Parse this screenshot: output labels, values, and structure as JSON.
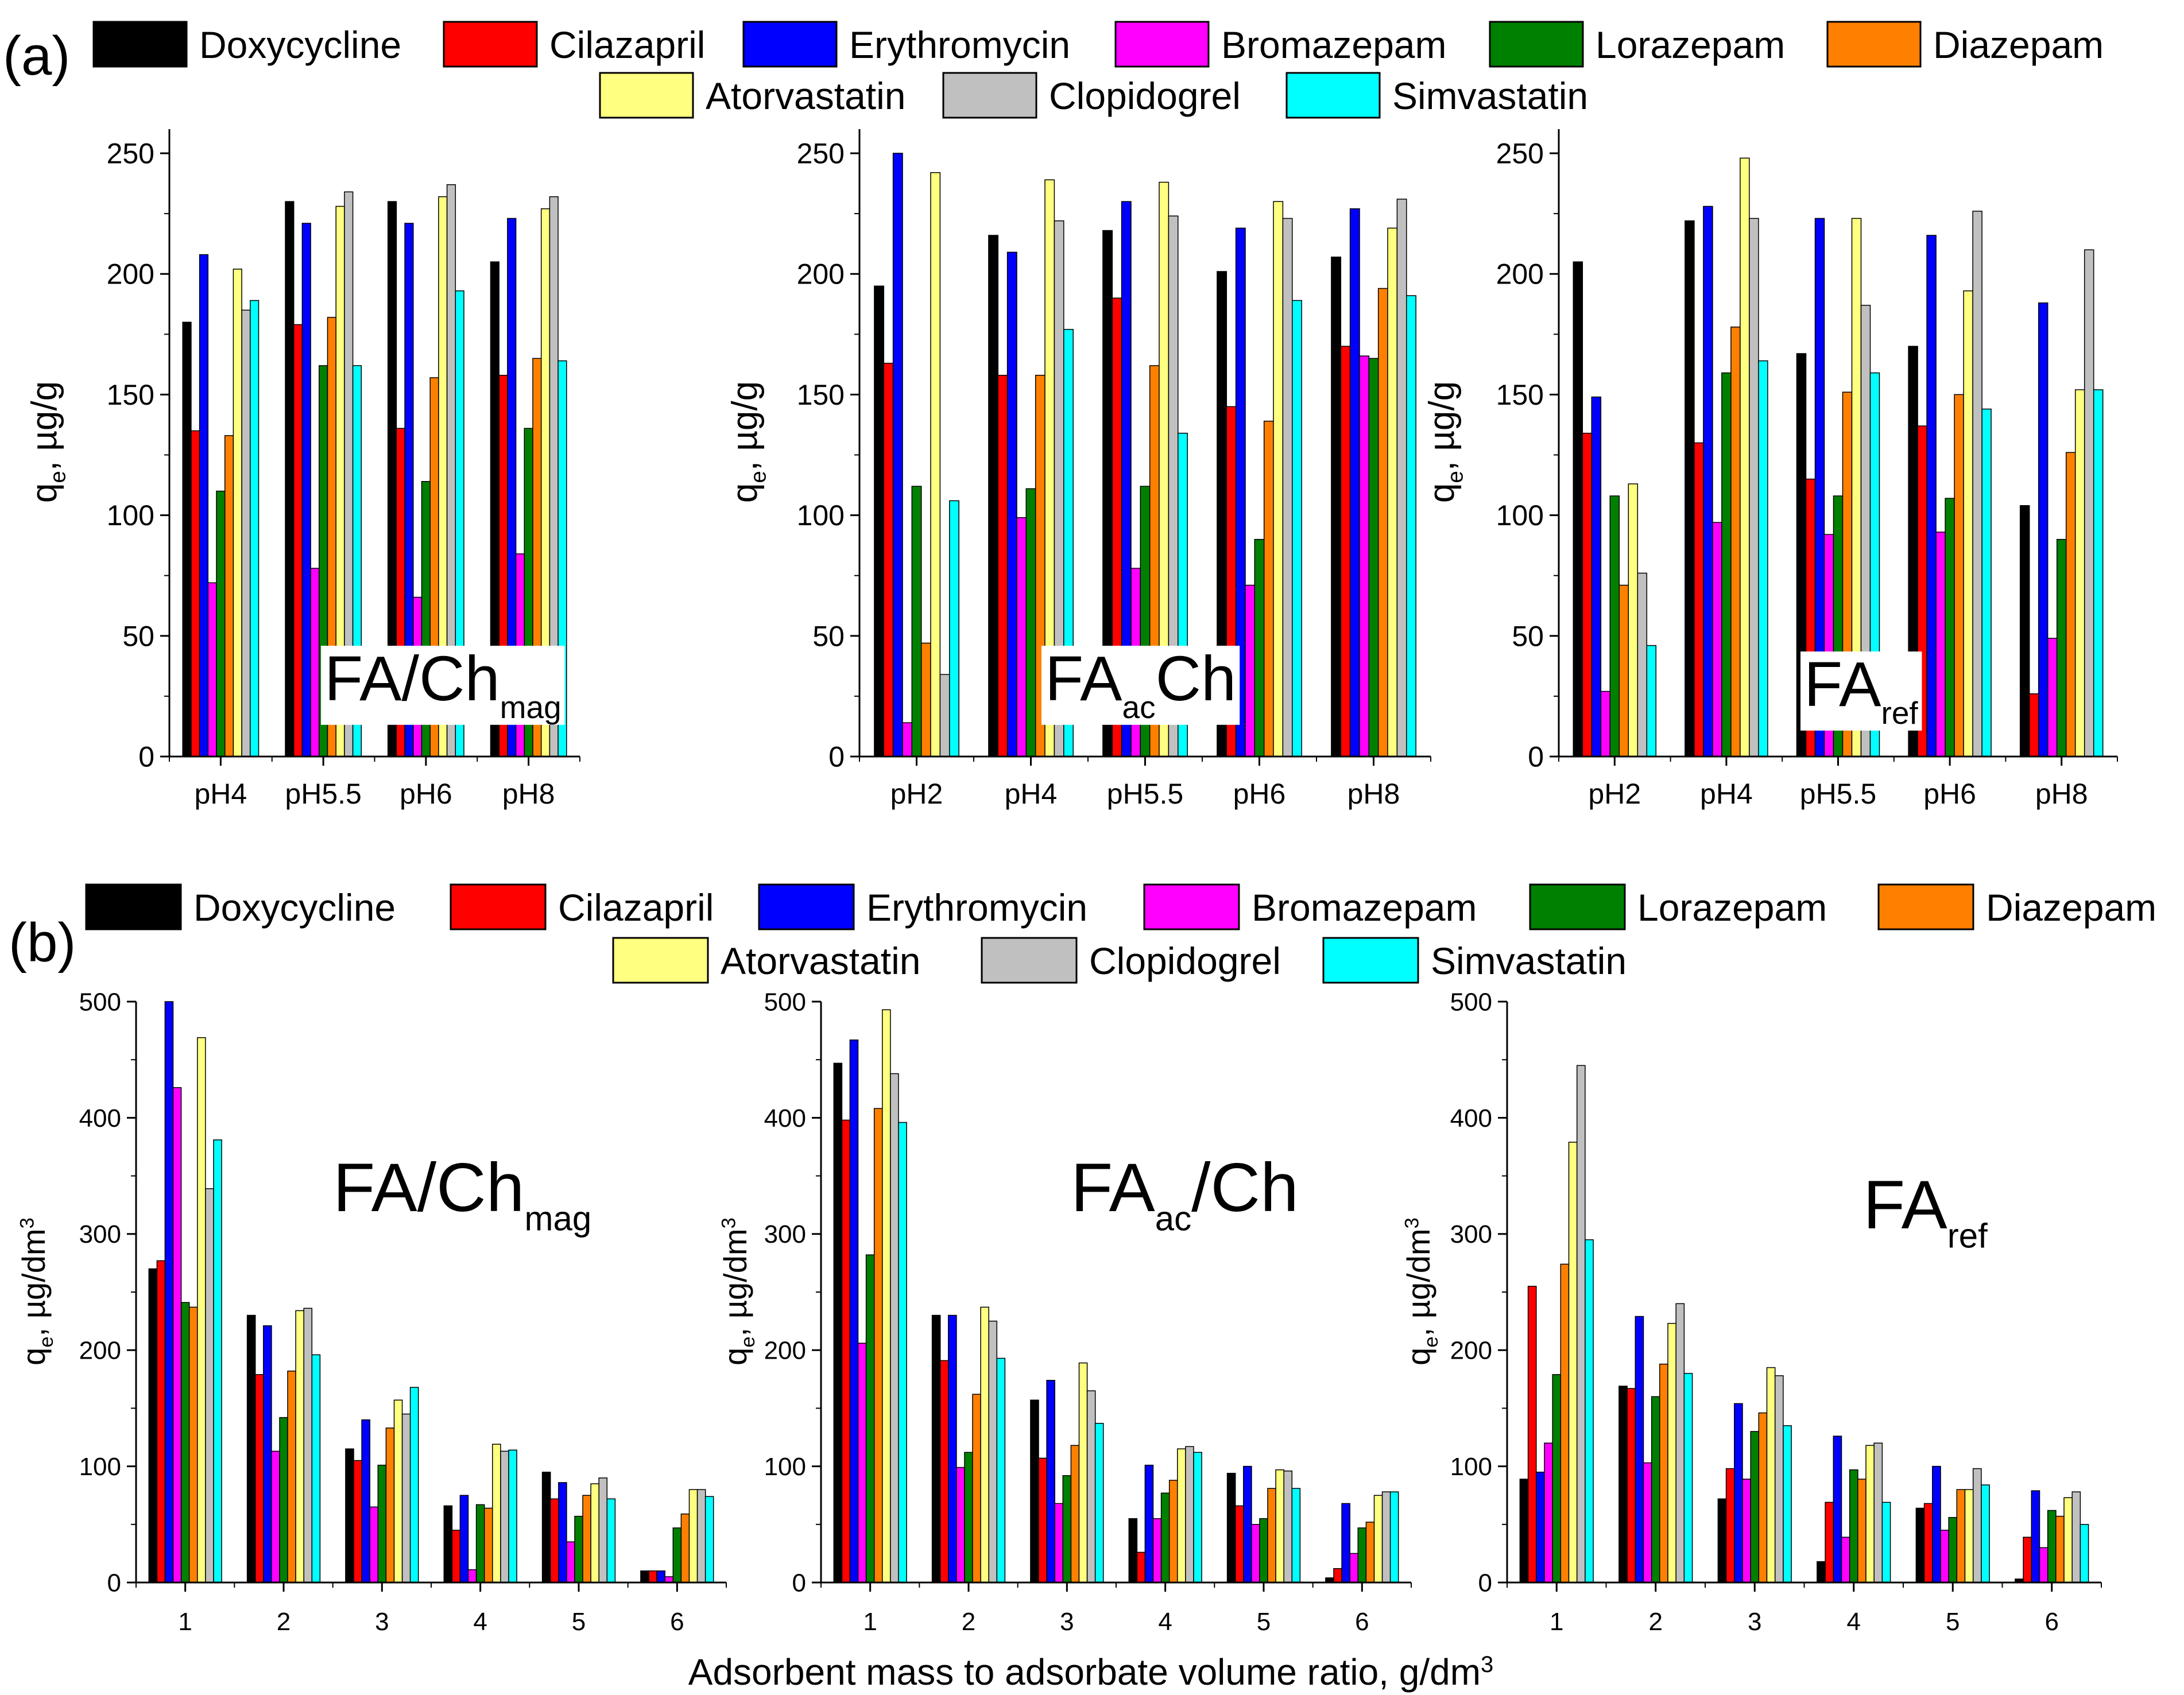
{
  "colors": {
    "Doxycycline": "#000000",
    "Cilazapril": "#ff0000",
    "Erythromycin": "#0000ff",
    "Bromazepam": "#ff00ff",
    "Lorazepam": "#008000",
    "Diazepam": "#ff8000",
    "Atorvastatin": "#ffff80",
    "Clopidogrel": "#c0c0c0",
    "Simvastatin": "#00ffff"
  },
  "legend": {
    "row1": [
      "Doxycycline",
      "Cilazapril",
      "Erythromycin",
      "Bromazepam",
      "Lorazepam",
      "Diazepam"
    ],
    "row2": [
      "Atorvastatin",
      "Clopidogrel",
      "Simvastatin"
    ]
  },
  "labels": {
    "panel_a": "(a)",
    "panel_b": "(b)",
    "ylabel_a": "q",
    "ylabel_a_sub": "e",
    "ylabel_a_rest": ", µg/g",
    "ylabel_b": "q",
    "ylabel_b_sub": "e",
    "ylabel_b_rest": ", µg/dm",
    "ylabel_b_sup": "3",
    "xlabel_b": "Adsorbent mass to adsorbate volume ratio, g/dm",
    "xlabel_b_sup": "3"
  },
  "chart_data": [
    {
      "type": "bar",
      "panel": "a",
      "name_main": "FA/Ch",
      "name_sub": "mag",
      "categories": [
        "pH4",
        "pH5.5",
        "pH6",
        "pH8"
      ],
      "ylim": [
        0,
        260
      ],
      "yticks": [
        0,
        50,
        100,
        150,
        200,
        250
      ],
      "series": [
        {
          "name": "Doxycycline",
          "values": [
            180,
            230,
            230,
            205
          ]
        },
        {
          "name": "Cilazapril",
          "values": [
            135,
            179,
            136,
            158
          ]
        },
        {
          "name": "Erythromycin",
          "values": [
            208,
            221,
            221,
            223
          ]
        },
        {
          "name": "Bromazepam",
          "values": [
            72,
            78,
            66,
            84
          ]
        },
        {
          "name": "Lorazepam",
          "values": [
            110,
            162,
            114,
            136
          ]
        },
        {
          "name": "Diazepam",
          "values": [
            133,
            182,
            157,
            165
          ]
        },
        {
          "name": "Atorvastatin",
          "values": [
            202,
            228,
            232,
            227
          ]
        },
        {
          "name": "Clopidogrel",
          "values": [
            185,
            234,
            237,
            232
          ]
        },
        {
          "name": "Simvastatin",
          "values": [
            189,
            162,
            193,
            164
          ]
        }
      ]
    },
    {
      "type": "bar",
      "panel": "a",
      "name_main": "FA",
      "name_sub": "ac",
      "name_tail": "Ch",
      "categories": [
        "pH2",
        "pH4",
        "pH5.5",
        "pH6",
        "pH8"
      ],
      "ylim": [
        0,
        260
      ],
      "yticks": [
        0,
        50,
        100,
        150,
        200,
        250
      ],
      "series": [
        {
          "name": "Doxycycline",
          "values": [
            195,
            216,
            218,
            201,
            207
          ]
        },
        {
          "name": "Cilazapril",
          "values": [
            163,
            158,
            190,
            145,
            170
          ]
        },
        {
          "name": "Erythromycin",
          "values": [
            250,
            209,
            230,
            219,
            227
          ]
        },
        {
          "name": "Bromazepam",
          "values": [
            14,
            99,
            78,
            71,
            166
          ]
        },
        {
          "name": "Lorazepam",
          "values": [
            112,
            111,
            112,
            90,
            165
          ]
        },
        {
          "name": "Diazepam",
          "values": [
            47,
            158,
            162,
            139,
            194
          ]
        },
        {
          "name": "Atorvastatin",
          "values": [
            242,
            239,
            238,
            230,
            219
          ]
        },
        {
          "name": "Clopidogrel",
          "values": [
            34,
            222,
            224,
            223,
            231
          ]
        },
        {
          "name": "Simvastatin",
          "values": [
            106,
            177,
            134,
            189,
            191
          ]
        }
      ]
    },
    {
      "type": "bar",
      "panel": "a",
      "name_main": "FA",
      "name_sub": "ref",
      "categories": [
        "pH2",
        "pH4",
        "pH5.5",
        "pH6",
        "pH8"
      ],
      "ylim": [
        0,
        260
      ],
      "yticks": [
        0,
        50,
        100,
        150,
        200,
        250
      ],
      "series": [
        {
          "name": "Doxycycline",
          "values": [
            205,
            222,
            167,
            170,
            104
          ]
        },
        {
          "name": "Cilazapril",
          "values": [
            134,
            130,
            115,
            137,
            26
          ]
        },
        {
          "name": "Erythromycin",
          "values": [
            149,
            228,
            223,
            216,
            188
          ]
        },
        {
          "name": "Bromazepam",
          "values": [
            27,
            97,
            92,
            93,
            49
          ]
        },
        {
          "name": "Lorazepam",
          "values": [
            108,
            159,
            108,
            107,
            90
          ]
        },
        {
          "name": "Diazepam",
          "values": [
            71,
            178,
            151,
            150,
            126
          ]
        },
        {
          "name": "Atorvastatin",
          "values": [
            113,
            248,
            223,
            193,
            152
          ]
        },
        {
          "name": "Clopidogrel",
          "values": [
            76,
            223,
            187,
            226,
            210
          ]
        },
        {
          "name": "Simvastatin",
          "values": [
            46,
            164,
            159,
            144,
            152
          ]
        }
      ]
    },
    {
      "type": "bar",
      "panel": "b",
      "name_main": "FA/Ch",
      "name_sub": "mag",
      "categories": [
        "1",
        "2",
        "3",
        "4",
        "5",
        "6"
      ],
      "ylim": [
        0,
        500
      ],
      "yticks": [
        0,
        100,
        200,
        300,
        400,
        500
      ],
      "series": [
        {
          "name": "Doxycycline",
          "values": [
            270,
            230,
            115,
            66,
            95,
            10
          ]
        },
        {
          "name": "Cilazapril",
          "values": [
            277,
            179,
            105,
            45,
            72,
            10
          ]
        },
        {
          "name": "Erythromycin",
          "values": [
            500,
            221,
            140,
            75,
            86,
            10
          ]
        },
        {
          "name": "Bromazepam",
          "values": [
            426,
            113,
            65,
            11,
            35,
            5
          ]
        },
        {
          "name": "Lorazepam",
          "values": [
            241,
            142,
            101,
            67,
            57,
            47
          ]
        },
        {
          "name": "Diazepam",
          "values": [
            237,
            182,
            133,
            64,
            75,
            59
          ]
        },
        {
          "name": "Atorvastatin",
          "values": [
            469,
            234,
            157,
            119,
            85,
            80
          ]
        },
        {
          "name": "Clopidogrel",
          "values": [
            339,
            236,
            145,
            113,
            90,
            80
          ]
        },
        {
          "name": "Simvastatin",
          "values": [
            381,
            196,
            168,
            114,
            72,
            74
          ]
        }
      ]
    },
    {
      "type": "bar",
      "panel": "b",
      "name_main": "FA",
      "name_sub": "ac",
      "name_tail": "/Ch",
      "categories": [
        "1",
        "2",
        "3",
        "4",
        "5",
        "6"
      ],
      "ylim": [
        0,
        500
      ],
      "yticks": [
        0,
        100,
        200,
        300,
        400,
        500
      ],
      "series": [
        {
          "name": "Doxycycline",
          "values": [
            447,
            230,
            157,
            55,
            94,
            4
          ]
        },
        {
          "name": "Cilazapril",
          "values": [
            398,
            191,
            107,
            26,
            66,
            12
          ]
        },
        {
          "name": "Erythromycin",
          "values": [
            467,
            230,
            174,
            101,
            100,
            68
          ]
        },
        {
          "name": "Bromazepam",
          "values": [
            206,
            99,
            68,
            55,
            50,
            25
          ]
        },
        {
          "name": "Lorazepam",
          "values": [
            282,
            112,
            92,
            77,
            55,
            47
          ]
        },
        {
          "name": "Diazepam",
          "values": [
            408,
            162,
            118,
            88,
            81,
            52
          ]
        },
        {
          "name": "Atorvastatin",
          "values": [
            493,
            237,
            189,
            115,
            97,
            75
          ]
        },
        {
          "name": "Clopidogrel",
          "values": [
            438,
            225,
            165,
            117,
            96,
            78
          ]
        },
        {
          "name": "Simvastatin",
          "values": [
            396,
            193,
            137,
            112,
            81,
            78
          ]
        }
      ]
    },
    {
      "type": "bar",
      "panel": "b",
      "name_main": "FA",
      "name_sub": "ref",
      "categories": [
        "1",
        "2",
        "3",
        "4",
        "5",
        "6"
      ],
      "ylim": [
        0,
        500
      ],
      "yticks": [
        0,
        100,
        200,
        300,
        400,
        500
      ],
      "series": [
        {
          "name": "Doxycycline",
          "values": [
            89,
            169,
            72,
            18,
            64,
            3
          ]
        },
        {
          "name": "Cilazapril",
          "values": [
            255,
            167,
            98,
            69,
            68,
            39
          ]
        },
        {
          "name": "Erythromycin",
          "values": [
            95,
            229,
            154,
            126,
            100,
            79
          ]
        },
        {
          "name": "Bromazepam",
          "values": [
            120,
            103,
            89,
            39,
            45,
            30
          ]
        },
        {
          "name": "Lorazepam",
          "values": [
            179,
            160,
            130,
            97,
            56,
            62
          ]
        },
        {
          "name": "Diazepam",
          "values": [
            274,
            188,
            146,
            89,
            80,
            57
          ]
        },
        {
          "name": "Atorvastatin",
          "values": [
            379,
            223,
            185,
            118,
            80,
            73
          ]
        },
        {
          "name": "Clopidogrel",
          "values": [
            445,
            240,
            178,
            120,
            98,
            78
          ]
        },
        {
          "name": "Simvastatin",
          "values": [
            295,
            180,
            135,
            69,
            84,
            50
          ]
        }
      ]
    }
  ]
}
